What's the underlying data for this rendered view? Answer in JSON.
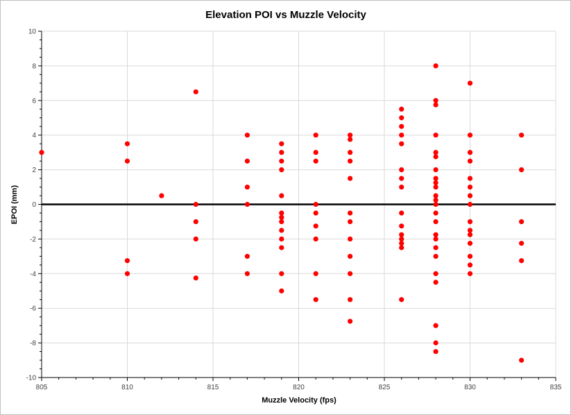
{
  "chart_data": {
    "type": "scatter",
    "title": "Elevation POI vs Muzzle Velocity",
    "xlabel": "Muzzle Velocity (fps)",
    "ylabel": "EPOI (mm)",
    "xlim": [
      805,
      835
    ],
    "ylim": [
      -10,
      10
    ],
    "x_ticks": [
      805,
      810,
      815,
      820,
      825,
      830,
      835
    ],
    "y_ticks": [
      -10,
      -8,
      -6,
      -4,
      -2,
      0,
      2,
      4,
      6,
      8,
      10
    ],
    "grid": true,
    "zero_line": true,
    "legend": "none",
    "series": [
      {
        "name": "EPOI",
        "color": "#ff0000",
        "points": [
          [
            805,
            3
          ],
          [
            810,
            3.5
          ],
          [
            810,
            2.5
          ],
          [
            810,
            -3.25
          ],
          [
            810,
            -4
          ],
          [
            812,
            0.5
          ],
          [
            814,
            6.5
          ],
          [
            814,
            0
          ],
          [
            814,
            -1
          ],
          [
            814,
            -2
          ],
          [
            814,
            -4.25
          ],
          [
            817,
            4
          ],
          [
            817,
            2.5
          ],
          [
            817,
            1
          ],
          [
            817,
            0
          ],
          [
            817,
            -3
          ],
          [
            817,
            -4
          ],
          [
            819,
            3.5
          ],
          [
            819,
            3
          ],
          [
            819,
            2.5
          ],
          [
            819,
            2
          ],
          [
            819,
            0.5
          ],
          [
            819,
            -0.5
          ],
          [
            819,
            -0.75
          ],
          [
            819,
            -1
          ],
          [
            819,
            -1.5
          ],
          [
            819,
            -2
          ],
          [
            819,
            -2.5
          ],
          [
            819,
            -4
          ],
          [
            819,
            -5
          ],
          [
            821,
            4
          ],
          [
            821,
            3
          ],
          [
            821,
            2.5
          ],
          [
            821,
            0
          ],
          [
            821,
            -0.5
          ],
          [
            821,
            -1.25
          ],
          [
            821,
            -2
          ],
          [
            821,
            -4
          ],
          [
            821,
            -5.5
          ],
          [
            823,
            4
          ],
          [
            823,
            3.75
          ],
          [
            823,
            3
          ],
          [
            823,
            2.5
          ],
          [
            823,
            1.5
          ],
          [
            823,
            -0.5
          ],
          [
            823,
            -1
          ],
          [
            823,
            -2
          ],
          [
            823,
            -3
          ],
          [
            823,
            -4
          ],
          [
            823,
            -5.5
          ],
          [
            823,
            -6.75
          ],
          [
            826,
            5.5
          ],
          [
            826,
            5
          ],
          [
            826,
            4.5
          ],
          [
            826,
            4
          ],
          [
            826,
            3.5
          ],
          [
            826,
            2
          ],
          [
            826,
            1.5
          ],
          [
            826,
            1
          ],
          [
            826,
            -0.5
          ],
          [
            826,
            -1.25
          ],
          [
            826,
            -1.75
          ],
          [
            826,
            -2
          ],
          [
            826,
            -2.25
          ],
          [
            826,
            -2.5
          ],
          [
            826,
            -5.5
          ],
          [
            828,
            8
          ],
          [
            828,
            6
          ],
          [
            828,
            5.75
          ],
          [
            828,
            4
          ],
          [
            828,
            3
          ],
          [
            828,
            2.75
          ],
          [
            828,
            2
          ],
          [
            828,
            1.5
          ],
          [
            828,
            1.25
          ],
          [
            828,
            1
          ],
          [
            828,
            0.5
          ],
          [
            828,
            0.25
          ],
          [
            828,
            0
          ],
          [
            828,
            -0.5
          ],
          [
            828,
            -1
          ],
          [
            828,
            -1.75
          ],
          [
            828,
            -2
          ],
          [
            828,
            -2.5
          ],
          [
            828,
            -3
          ],
          [
            828,
            -4
          ],
          [
            828,
            -4.5
          ],
          [
            828,
            -7
          ],
          [
            828,
            -8
          ],
          [
            828,
            -8.5
          ],
          [
            830,
            7
          ],
          [
            830,
            4
          ],
          [
            830,
            3
          ],
          [
            830,
            2.5
          ],
          [
            830,
            1.5
          ],
          [
            830,
            1
          ],
          [
            830,
            0.5
          ],
          [
            830,
            0
          ],
          [
            830,
            -1
          ],
          [
            830,
            -1.5
          ],
          [
            830,
            -1.75
          ],
          [
            830,
            -2.25
          ],
          [
            830,
            -3
          ],
          [
            830,
            -3.5
          ],
          [
            830,
            -4
          ],
          [
            833,
            4
          ],
          [
            833,
            2
          ],
          [
            833,
            -1
          ],
          [
            833,
            -2.25
          ],
          [
            833,
            -3.25
          ],
          [
            833,
            -9
          ]
        ]
      }
    ]
  }
}
